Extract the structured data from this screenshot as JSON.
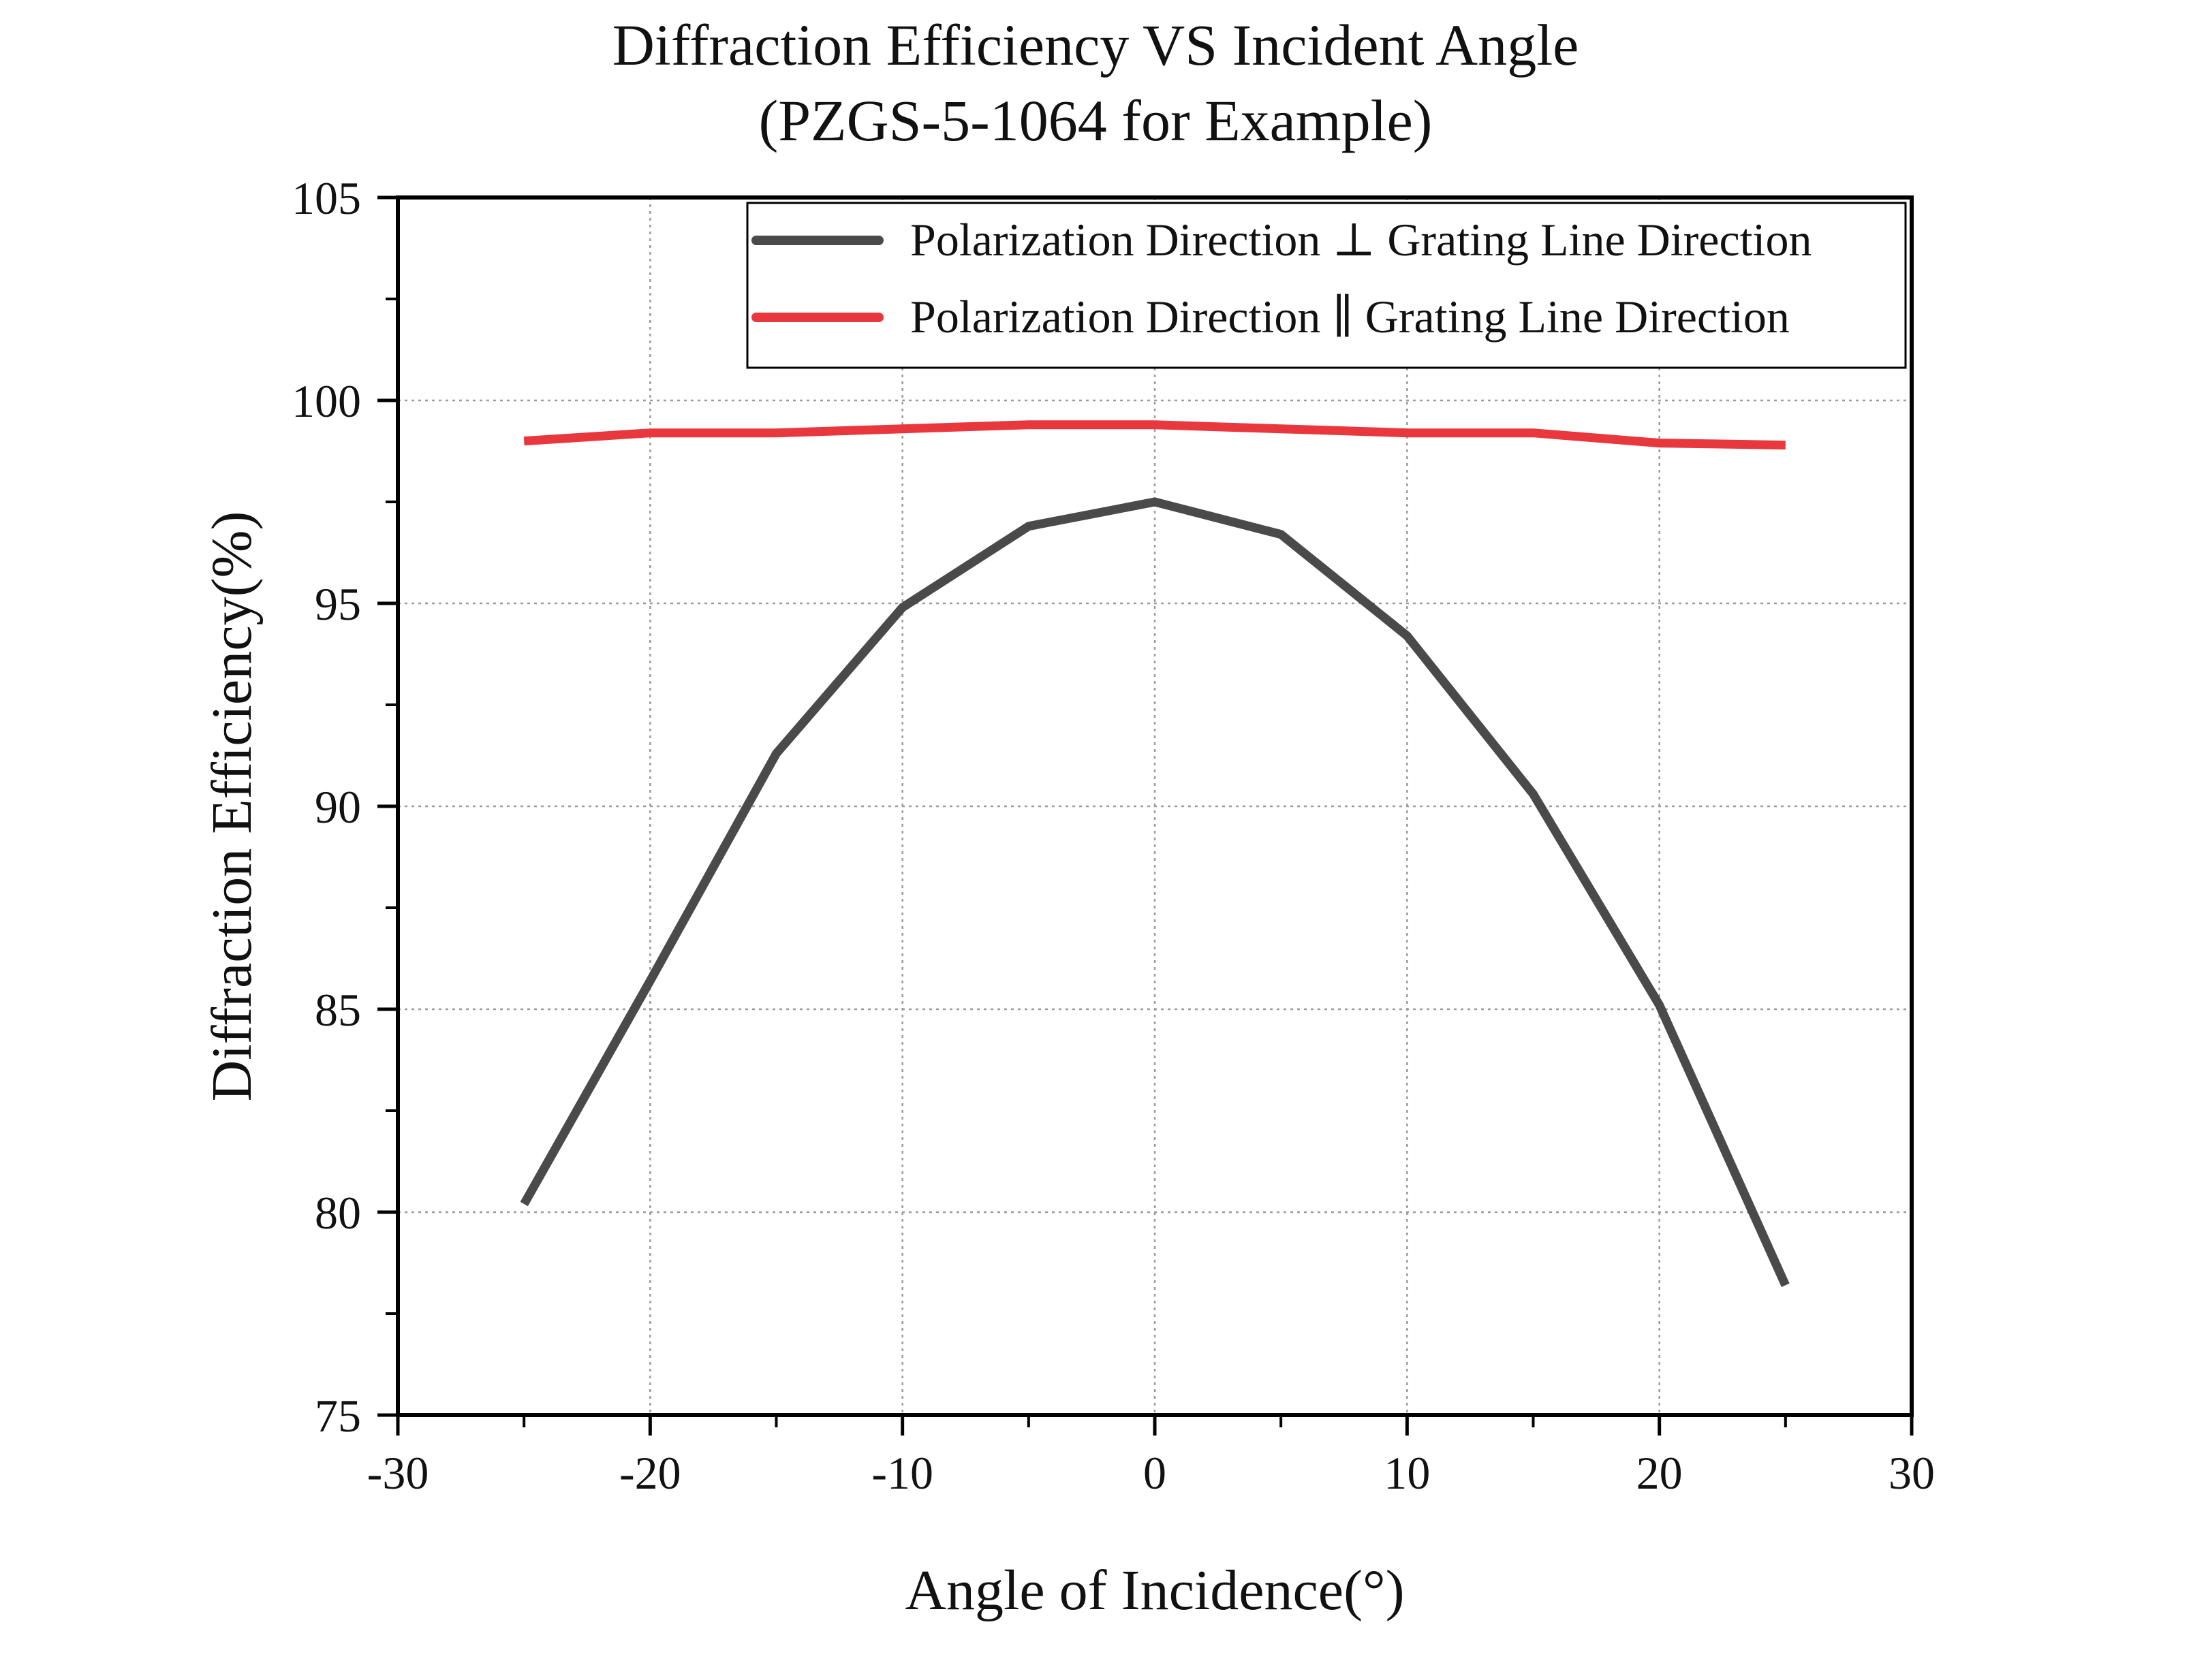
{
  "chart_data": {
    "type": "line",
    "title": "Diffraction Efficiency VS Incident Angle",
    "subtitle": "(PZGS-5-1064 for Example)",
    "xlabel": "Angle of Incidence(°)",
    "ylabel": "Diffraction Efficiency(%)",
    "xlim": [
      -30,
      30
    ],
    "ylim": [
      75,
      105
    ],
    "x_ticks": [
      -30,
      -20,
      -10,
      0,
      10,
      20,
      30
    ],
    "y_ticks": [
      75,
      80,
      85,
      90,
      95,
      100,
      105
    ],
    "x_tick_labels": [
      "-30",
      "-20",
      "-10",
      "0",
      "10",
      "20",
      "30"
    ],
    "y_tick_labels": [
      "75",
      "80",
      "85",
      "90",
      "95",
      "100",
      "105"
    ],
    "grid": true,
    "legend_position": "top-right",
    "x": [
      -25,
      -20,
      -15,
      -10,
      -5,
      0,
      5,
      10,
      15,
      20,
      25
    ],
    "series": [
      {
        "name": "Polarization Direction ⊥ Grating Line Direction",
        "color": "#4a4a4a",
        "values": [
          80.2,
          85.7,
          91.3,
          94.9,
          96.9,
          97.5,
          96.7,
          94.2,
          90.3,
          85.1,
          78.2
        ]
      },
      {
        "name": "Polarization Direction ∥ Grating Line Direction",
        "color": "#e8383d",
        "values": [
          99.0,
          99.2,
          99.2,
          99.3,
          99.4,
          99.4,
          99.3,
          99.2,
          99.2,
          98.95,
          98.9
        ]
      }
    ]
  }
}
